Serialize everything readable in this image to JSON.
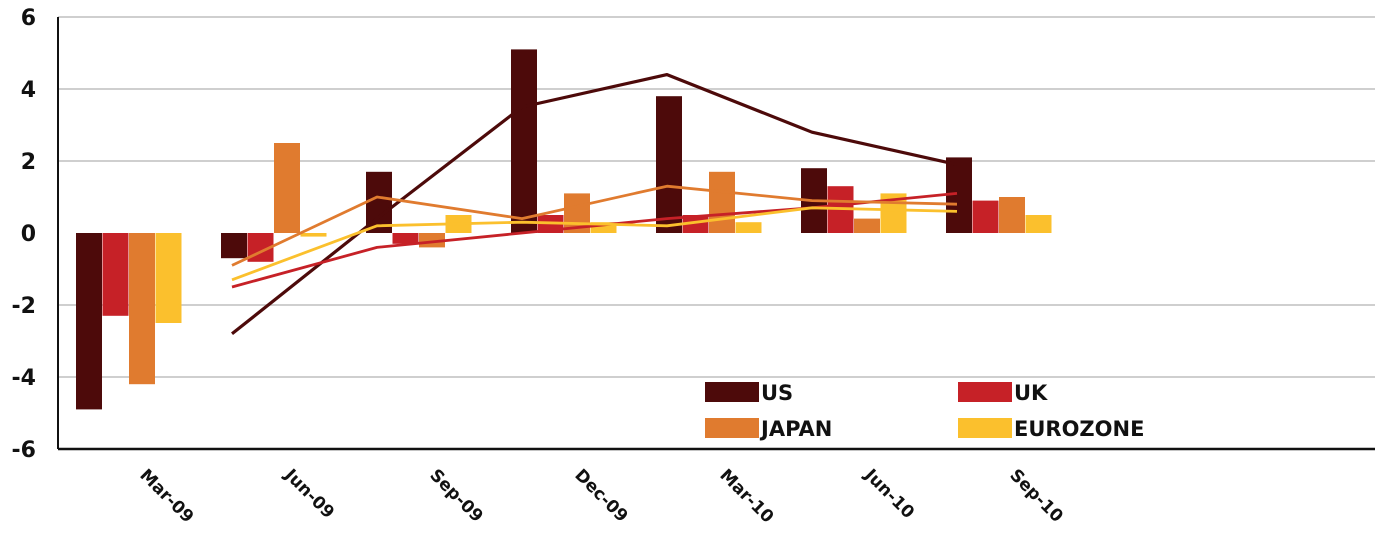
{
  "chart_data": {
    "type": "bar",
    "title": "",
    "xlabel": "",
    "ylabel": "",
    "ylim": [
      -6,
      6
    ],
    "yticks": [
      6,
      4,
      2,
      0,
      -2,
      -4,
      -6
    ],
    "grid": true,
    "legend_position": "bottom-right",
    "categories": [
      "Mar-09",
      "Jun-09",
      "Sep-09",
      "Dec-09",
      "Mar-10",
      "Jun-10",
      "Sep-10"
    ],
    "series": [
      {
        "name": "US",
        "color": "#4d0a0a",
        "values": [
          -4.9,
          -0.7,
          1.7,
          5.1,
          3.8,
          1.8,
          2.1
        ]
      },
      {
        "name": "UK",
        "color": "#c62127",
        "values": [
          -2.3,
          -0.8,
          -0.3,
          0.5,
          0.5,
          1.3,
          0.9
        ]
      },
      {
        "name": "JAPAN",
        "color": "#e07b2f",
        "values": [
          -4.2,
          2.5,
          -0.4,
          1.1,
          1.7,
          0.4,
          1.0
        ]
      },
      {
        "name": "EUROZONE",
        "color": "#fbc02d",
        "values": [
          -2.5,
          -0.1,
          0.5,
          0.3,
          0.3,
          1.1,
          0.5
        ]
      }
    ],
    "trend_lines": [
      {
        "series": "US",
        "color": "#4d0a0a",
        "values": [
          -2.8,
          0.4,
          3.5,
          4.4,
          2.8,
          1.9
        ]
      },
      {
        "series": "UK",
        "color": "#c62127",
        "values": [
          -1.5,
          -0.4,
          0.0,
          0.4,
          0.7,
          1.1
        ]
      },
      {
        "series": "JAPAN",
        "color": "#e07b2f",
        "values": [
          -0.9,
          1.0,
          0.4,
          1.3,
          0.9,
          0.8
        ]
      },
      {
        "series": "EUROZONE",
        "color": "#fbc02d",
        "values": [
          -1.3,
          0.2,
          0.3,
          0.2,
          0.7,
          0.6
        ]
      }
    ]
  }
}
